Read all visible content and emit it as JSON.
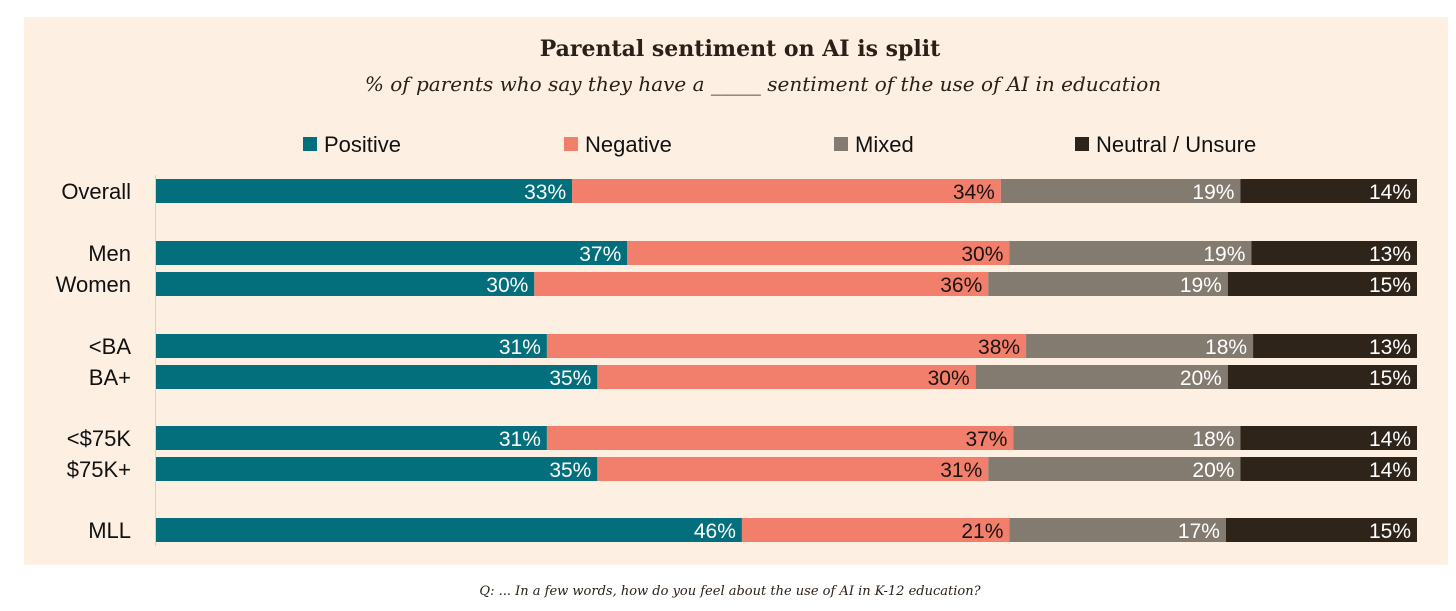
{
  "chart_data": {
    "type": "bar",
    "stacked": true,
    "orientation": "horizontal",
    "title": "Parental sentiment on AI is split",
    "subtitle": "% of parents who say they have a _____ sentiment of the use of AI in education",
    "note": "Q: ... In a few words, how do you feel about the use of AI in K-12 education?",
    "legend_position": "top",
    "categories": [
      "Overall",
      "Men",
      "Women",
      "<BA",
      "BA+",
      "<$75K",
      "$75K+",
      "MLL"
    ],
    "groups": [
      [
        0
      ],
      [
        1,
        2
      ],
      [
        3,
        4
      ],
      [
        5,
        6
      ],
      [
        7
      ]
    ],
    "series": [
      {
        "name": "Positive",
        "color": "#046f7c",
        "label_color": "#ffffff",
        "values": [
          33,
          37,
          30,
          31,
          35,
          31,
          35,
          46
        ]
      },
      {
        "name": "Negative",
        "color": "#f27f6c",
        "label_color": "#1a1410",
        "values": [
          34,
          30,
          36,
          38,
          30,
          37,
          31,
          21
        ]
      },
      {
        "name": "Mixed",
        "color": "#837a70",
        "label_color": "#ffffff",
        "values": [
          19,
          19,
          19,
          18,
          20,
          18,
          20,
          17
        ]
      },
      {
        "name": "Neutral / Unsure",
        "color": "#2e2419",
        "label_color": "#ffffff",
        "values": [
          14,
          13,
          15,
          13,
          15,
          14,
          14,
          15
        ]
      }
    ],
    "value_suffix": "%",
    "xlim": [
      0,
      100
    ],
    "grid": false
  }
}
